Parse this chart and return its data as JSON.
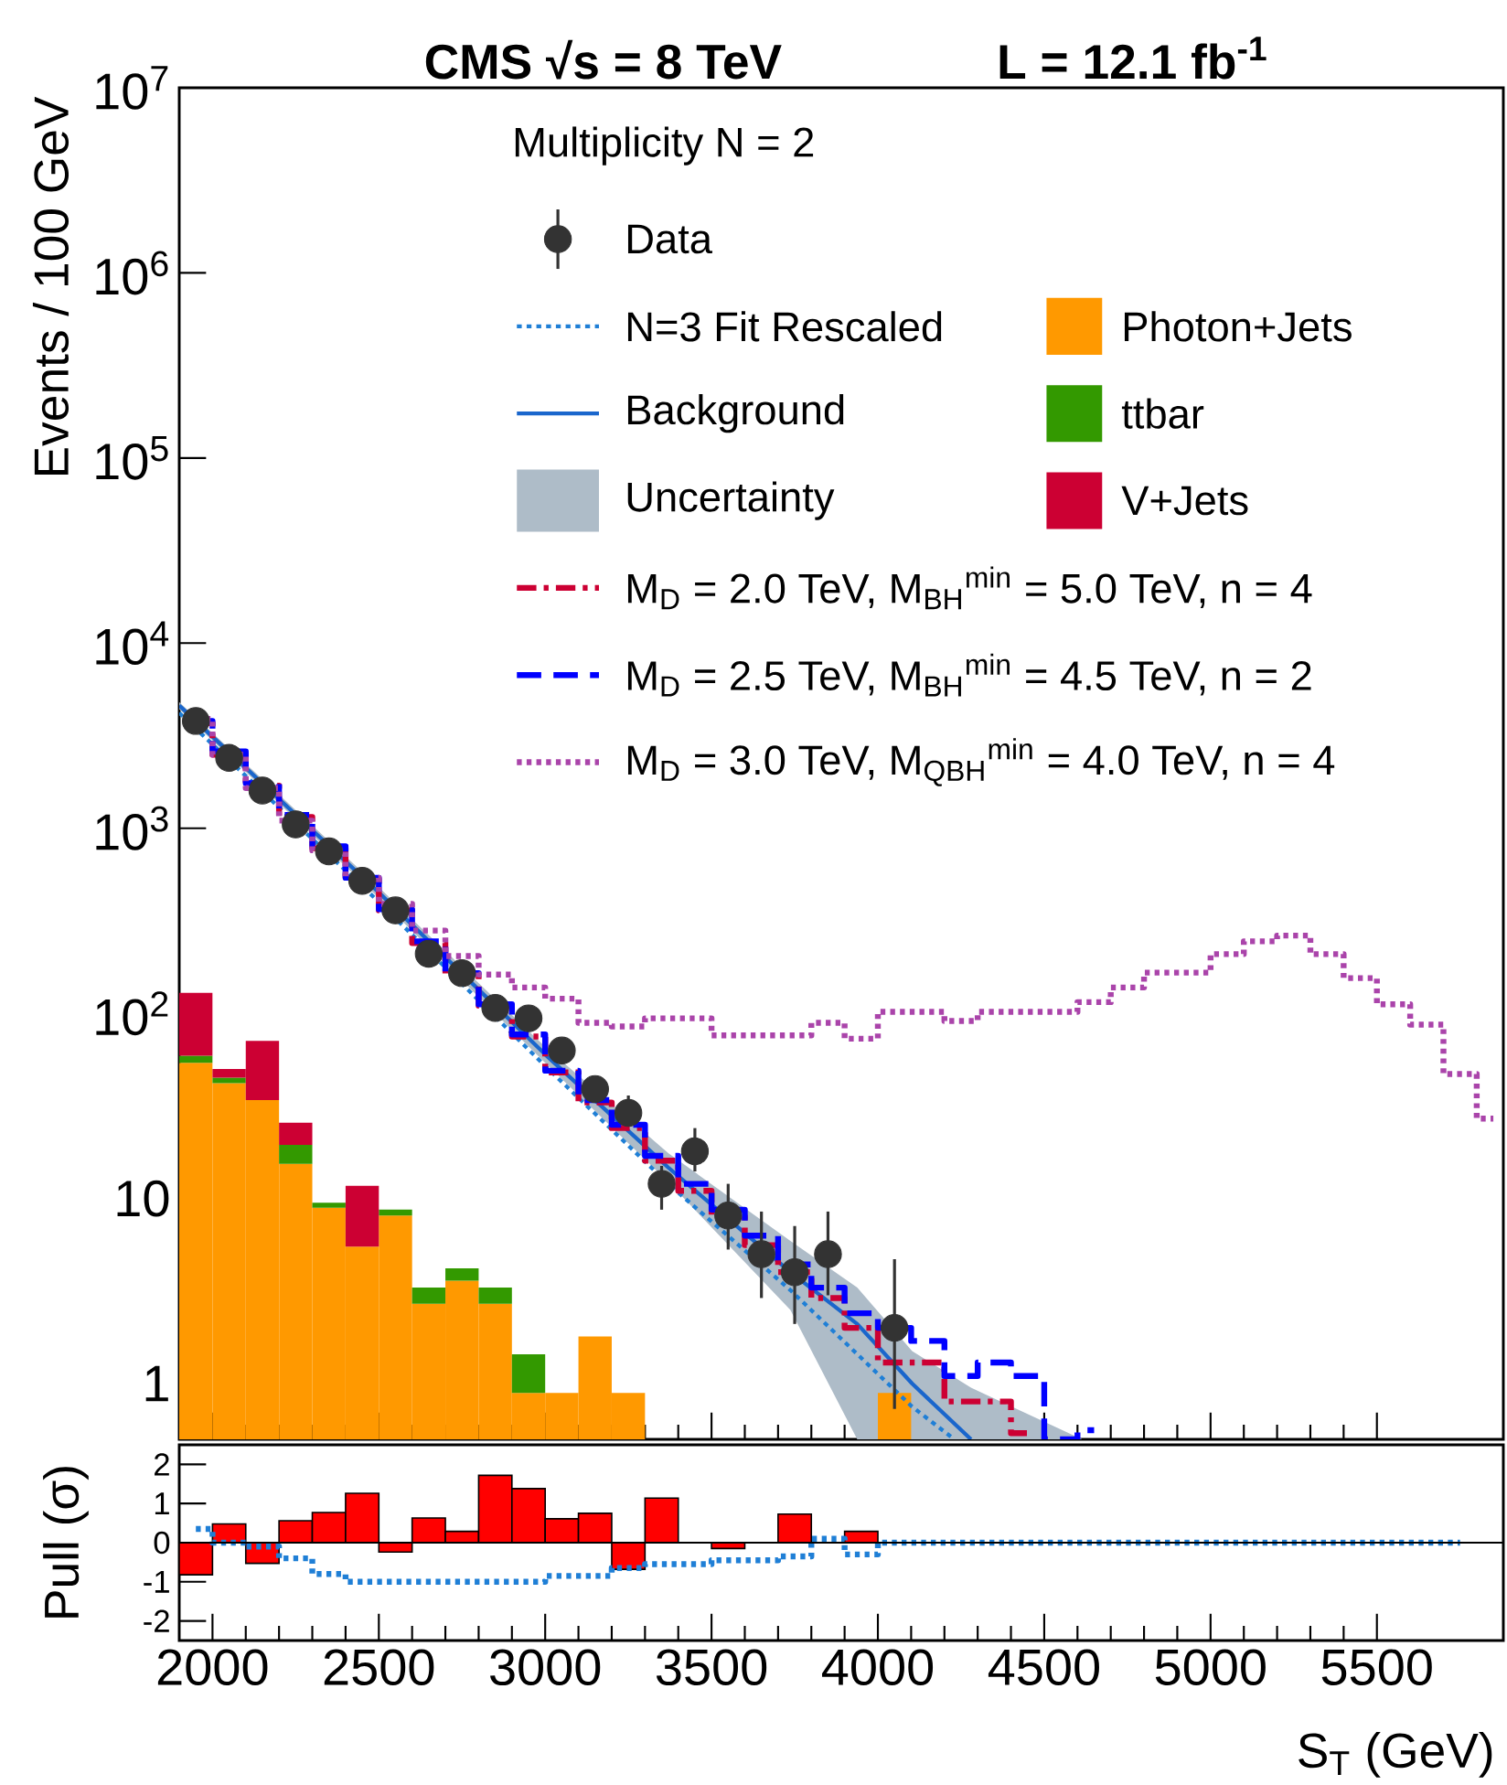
{
  "chart_data": [
    {
      "type": "line",
      "title": "CMS √s = 8 TeV",
      "subtitle": "L = 12.1 fb$^{-1}$",
      "ylabel": "Events / 100 GeV",
      "legend_title": "Multiplicity N = 2",
      "legend": "top right",
      "log": true,
      "stacked": true,
      "tick_labels": "y",
      "xlim": [
        1900,
        5880
      ],
      "ylim": [
        0.5,
        10000000
      ],
      "xticks": [
        2000,
        2500,
        3000,
        3500,
        4000,
        4500,
        5000,
        5500
      ],
      "yticks": [
        {
          "value": 1,
          "label": "1"
        },
        {
          "value": 10,
          "label": "10"
        },
        {
          "value": 100,
          "label": "10$^{2}$"
        },
        {
          "value": 1000,
          "label": "10$^{3}$"
        },
        {
          "value": 10000,
          "label": "10$^{4}$"
        },
        {
          "value": 100000,
          "label": "10$^{5}$"
        },
        {
          "value": 1000000,
          "label": "10$^{6}$"
        },
        {
          "value": 10000000,
          "label": "10$^{7}$"
        }
      ],
      "series": [
        {
          "name": "Data",
          "type": "scatter",
          "marker": "circle",
          "color": "#333333",
          "x": [
            1950,
            2050,
            2150,
            2250,
            2350,
            2450,
            2550,
            2650,
            2750,
            2850,
            2950,
            3050,
            3150,
            3250,
            3350,
            3450,
            3550,
            3650,
            3750,
            3850,
            3950,
            4050
          ],
          "values": [
            3800,
            2400,
            1600,
            1050,
            750,
            520,
            360,
            210,
            165,
            107,
            94,
            63,
            39,
            29,
            12,
            18,
            8.1,
            5,
            4,
            5,
            null,
            2
          ],
          "errors": [
            null,
            null,
            null,
            null,
            null,
            null,
            null,
            null,
            null,
            null,
            null,
            null,
            null,
            [
              25,
              36
            ],
            [
              8.7,
              15
            ],
            [
              14,
              24
            ],
            [
              5.3,
              12
            ],
            [
              2.9,
              8.5
            ],
            [
              2.1,
              7.1
            ],
            [
              3,
              8.5
            ],
            null,
            [
              0.73,
              4.7
            ]
          ]
        },
        {
          "name": "N=3 Fit Rescaled",
          "line_style": "dotted",
          "color": "#1f7fd6",
          "x": [
            1900,
            2500,
            3000,
            3370,
            3737,
            4103,
            4230
          ],
          "values": [
            4200,
            400,
            52,
            12,
            3.2,
            0.75,
            0.5
          ]
        },
        {
          "name": "Background",
          "line_style": "solid",
          "color": "#1a66cc",
          "x": [
            1900,
            2500,
            3000,
            3370,
            3737,
            3938,
            4103,
            4280,
            4614
          ],
          "values": [
            4600,
            450,
            60,
            14.7,
            4,
            2.1,
            1.0,
            0.5,
            null
          ],
          "lower": [
            4400,
            420,
            54,
            12.3,
            2.5,
            0.5,
            0.5,
            0.5,
            0.5
          ],
          "upper": [
            4800,
            480,
            66,
            17.6,
            5.9,
            3.3,
            1.5,
            0.95,
            0.5
          ]
        },
        {
          "name": "Uncertainty",
          "type": "area",
          "color": "#aebcc8"
        },
        {
          "name": "Photon+Jets",
          "type": "bar",
          "color": "#ff9900",
          "x": [
            1950,
            2050,
            2150,
            2250,
            2350,
            2450,
            2550,
            2650,
            2750,
            2850,
            2950,
            3050,
            3150,
            3250,
            3350,
            3450,
            3550,
            3650,
            3750,
            3850,
            3950,
            4050
          ],
          "values": [
            54,
            42,
            34,
            15.4,
            8.9,
            5.5,
            8.1,
            2.7,
            3.6,
            2.7,
            0.89,
            0.89,
            1.8,
            0.89,
            null,
            null,
            null,
            null,
            null,
            null,
            null,
            0.89
          ]
        },
        {
          "name": "ttbar",
          "type": "bar",
          "color": "#339900",
          "x": [
            1950,
            2050,
            2150,
            2250,
            2350,
            2450,
            2550,
            2650,
            2750,
            2850,
            2950
          ],
          "values": [
            5,
            3,
            null,
            4.1,
            0.6,
            null,
            0.6,
            0.6,
            0.6,
            0.6,
            0.55
          ]
        },
        {
          "name": "V+Jets",
          "type": "bar",
          "color": "#cc0033",
          "x": [
            1950,
            2050,
            2150,
            2250,
            2350,
            2450
          ],
          "values": [
            70,
            5,
            37,
            6.2,
            null,
            6.2
          ]
        },
        {
          "name": "M$_{D}$ = 2.0 TeV, M$_{BH}$$^{min}$ = 5.0 TeV, n = 4",
          "type": "step",
          "line_style": "dashdot",
          "color": "#cc0033",
          "x": [
            1950,
            2050,
            2150,
            2250,
            2350,
            2450,
            2550,
            2650,
            2750,
            2850,
            2950,
            3050,
            3150,
            3250,
            3350,
            3450,
            3550,
            3650,
            3750,
            3850,
            3950,
            4050,
            4150,
            4250,
            4350,
            4450
          ],
          "values": [
            3700,
            2500,
            1700,
            1150,
            780,
            530,
            360,
            240,
            160,
            110,
            75,
            48,
            33,
            24,
            16,
            11,
            8,
            5.6,
            4.0,
            2.9,
            2.0,
            1.3,
            1.3,
            0.8,
            0.8,
            0.54
          ]
        },
        {
          "name": "M$_{D}$ = 2.5 TeV, M$_{BH}$$^{min}$ = 4.5 TeV, n = 2",
          "type": "step",
          "line_style": "dashed",
          "color": "#0000ff",
          "x": [
            1950,
            2050,
            2150,
            2250,
            2350,
            2450,
            2550,
            2650,
            2750,
            2850,
            2950,
            3050,
            3150,
            3250,
            3350,
            3450,
            3550,
            3650,
            3750,
            3850,
            3950,
            4050,
            4150,
            4250,
            4350,
            4450,
            4550,
            4650
          ],
          "values": [
            3800,
            2600,
            1750,
            1180,
            800,
            540,
            365,
            245,
            165,
            112,
            77,
            49,
            34,
            25,
            17,
            12,
            8.7,
            6.3,
            4.4,
            3.3,
            2.4,
            2.0,
            1.7,
            1.1,
            1.3,
            1.1,
            0.5,
            0.56
          ]
        },
        {
          "name": "M$_{D}$ = 3.0 TeV, M$_{QBH}$$^{min}$ = 4.0 TeV, n = 4",
          "type": "step",
          "line_style": "dotted",
          "color": "#aa44aa",
          "x": [
            1950,
            2050,
            2150,
            2250,
            2350,
            2450,
            2550,
            2650,
            2750,
            2850,
            2950,
            3050,
            3150,
            3250,
            3350,
            3450,
            3550,
            3650,
            3750,
            3850,
            3950,
            4050,
            4150,
            4250,
            4350,
            4450,
            4550,
            4650,
            4750,
            4850,
            4950,
            5050,
            5150,
            5250,
            5350,
            5450,
            5550,
            5650,
            5750,
            5850
          ],
          "values": [
            3900,
            2500,
            1650,
            1100,
            760,
            540,
            390,
            280,
            204,
            162,
            138,
            120,
            89,
            85,
            94,
            94,
            76,
            76,
            76,
            89,
            73,
            102,
            102,
            91,
            102,
            102,
            102,
            115,
            138,
            166,
            166,
            209,
            245,
            263,
            209,
            155,
            112,
            87,
            47,
            27
          ]
        }
      ]
    },
    {
      "type": "bar",
      "xlabel": "S$_{T}$ (GeV)",
      "ylabel": "Pull (σ)",
      "xlim": [
        1900,
        5880
      ],
      "ylim": [
        -2.5,
        2.5
      ],
      "ref_lines": [
        {
          "axis": "y",
          "value": 0,
          "color": "#000000"
        }
      ],
      "xticks": [
        2000,
        2500,
        3000,
        3500,
        4000,
        4500,
        5000,
        5500
      ],
      "yticks": [
        -2,
        -1,
        0,
        1,
        2
      ],
      "series": [
        {
          "color": "#ff0000",
          "x": [
            1950,
            2050,
            2150,
            2250,
            2350,
            2450,
            2550,
            2650,
            2750,
            2850,
            2950,
            3050,
            3150,
            3250,
            3350,
            3450,
            3550,
            3650,
            3750,
            3850,
            3950
          ],
          "values": [
            -0.82,
            0.48,
            -0.53,
            0.56,
            0.77,
            1.26,
            -0.24,
            0.63,
            0.29,
            1.72,
            1.38,
            0.61,
            0.75,
            -0.68,
            1.14,
            null,
            -0.15,
            null,
            0.73,
            null,
            0.29
          ]
        },
        {
          "type": "step",
          "line_style": "dotted",
          "color": "#1f7fd6",
          "x": [
            1950,
            2050,
            2150,
            2250,
            2350,
            2450,
            2550,
            2650,
            2750,
            2850,
            2950,
            3050,
            3150,
            3250,
            3350,
            3450,
            3550,
            3650,
            3750,
            3850,
            3950,
            4050,
            5750
          ],
          "values": [
            0.35,
            0.0,
            -0.1,
            -0.4,
            -0.8,
            -1.0,
            -1.0,
            -1.0,
            -1.0,
            -1.0,
            -1.0,
            -0.85,
            -0.85,
            -0.65,
            -0.55,
            -0.55,
            -0.45,
            -0.45,
            -0.35,
            0.1,
            -0.3,
            0,
            0
          ]
        }
      ]
    }
  ]
}
